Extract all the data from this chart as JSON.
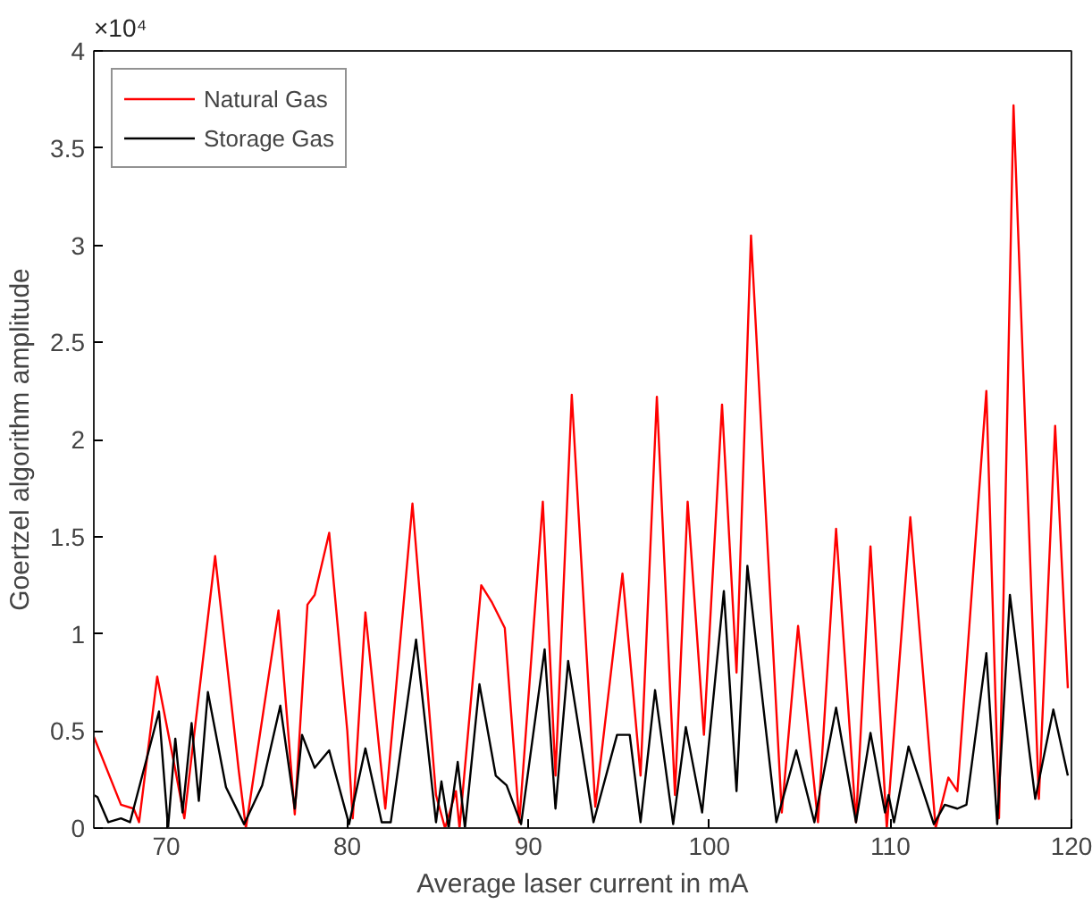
{
  "chart_data": {
    "type": "line",
    "xlabel": "Average laser current in mA",
    "ylabel": "Goertzel algorithm amplitude",
    "annotations": [
      "×10⁴"
    ],
    "xlim": [
      66,
      120
    ],
    "ylim": [
      0,
      4
    ],
    "xticks": [
      70,
      80,
      90,
      100,
      110,
      120
    ],
    "yticks": [
      0,
      0.5,
      1,
      1.5,
      2,
      2.5,
      3,
      3.5,
      4
    ],
    "grid": false,
    "legend": "top left",
    "marker": "none",
    "line_style": "solid",
    "series": [
      {
        "name": "Natural Gas",
        "color": "#ff0000",
        "x": [
          66,
          67.5,
          68.2,
          68.5,
          69.5,
          70.5,
          71.0,
          72.7,
          74.0,
          74.4,
          76.2,
          77.1,
          77.8,
          78.2,
          79.0,
          80.0,
          80.3,
          81.0,
          82.1,
          83.6,
          84.9,
          85.4,
          86.0,
          86.2,
          87.4,
          88.0,
          88.7,
          89.5,
          90.8,
          91.5,
          92.4,
          93.7,
          95.2,
          96.2,
          97.1,
          98.1,
          98.8,
          99.7,
          100.7,
          101.5,
          102.3,
          104.0,
          104.9,
          106.0,
          107.0,
          108.1,
          108.9,
          109.8,
          111.1,
          112.5,
          113.2,
          113.7,
          115.3,
          116.0,
          116.8,
          118.2,
          119.1,
          119.8
        ],
        "values": [
          0.47,
          0.12,
          0.1,
          0.03,
          0.78,
          0.3,
          0.05,
          1.4,
          0.3,
          0,
          1.12,
          0.07,
          1.15,
          1.2,
          1.52,
          0.5,
          0.05,
          1.11,
          0.1,
          1.67,
          0.17,
          0,
          0.19,
          0,
          1.25,
          1.16,
          1.03,
          0.03,
          1.68,
          0.27,
          2.23,
          0.11,
          1.31,
          0.27,
          2.22,
          0.17,
          1.68,
          0.48,
          2.18,
          0.8,
          3.05,
          0.08,
          1.04,
          0.03,
          1.54,
          0.03,
          1.45,
          0,
          1.6,
          0,
          0.26,
          0.19,
          2.25,
          0.05,
          3.72,
          0.15,
          2.07,
          0.72
        ]
      },
      {
        "name": "Storage Gas",
        "color": "#000000",
        "x": [
          66,
          66.2,
          66.8,
          67.5,
          68.0,
          69.6,
          70.1,
          70.5,
          70.9,
          71.4,
          71.8,
          72.3,
          73.3,
          74.3,
          75.3,
          76.3,
          77.1,
          77.5,
          78.2,
          79.0,
          80.1,
          81.0,
          81.9,
          82.4,
          83.8,
          84.9,
          85.2,
          85.6,
          86.1,
          86.5,
          87.3,
          88.2,
          88.8,
          89.6,
          90.9,
          91.5,
          92.2,
          93.6,
          94.9,
          95.6,
          96.2,
          97.0,
          98.0,
          98.7,
          99.6,
          100.8,
          101.5,
          102.1,
          103.7,
          104.8,
          105.8,
          107.0,
          108.1,
          108.9,
          109.7,
          109.9,
          110.2,
          111.0,
          112.4,
          113.0,
          113.7,
          114.2,
          115.3,
          115.9,
          116.6,
          118.0,
          119.0,
          119.8
        ],
        "values": [
          0.17,
          0.16,
          0.03,
          0.05,
          0.03,
          0.6,
          0,
          0.46,
          0.08,
          0.54,
          0.14,
          0.7,
          0.21,
          0.02,
          0.22,
          0.63,
          0.1,
          0.48,
          0.31,
          0.4,
          0.02,
          0.41,
          0.03,
          0.03,
          0.97,
          0.03,
          0.24,
          0,
          0.34,
          0,
          0.74,
          0.27,
          0.22,
          0.02,
          0.92,
          0.1,
          0.86,
          0.03,
          0.48,
          0.48,
          0.03,
          0.71,
          0.02,
          0.52,
          0.08,
          1.22,
          0.19,
          1.35,
          0.03,
          0.4,
          0.03,
          0.62,
          0.03,
          0.49,
          0.08,
          0.17,
          0.03,
          0.42,
          0.02,
          0.12,
          0.1,
          0.12,
          0.9,
          0.02,
          1.2,
          0.15,
          0.61,
          0.27
        ]
      }
    ]
  }
}
